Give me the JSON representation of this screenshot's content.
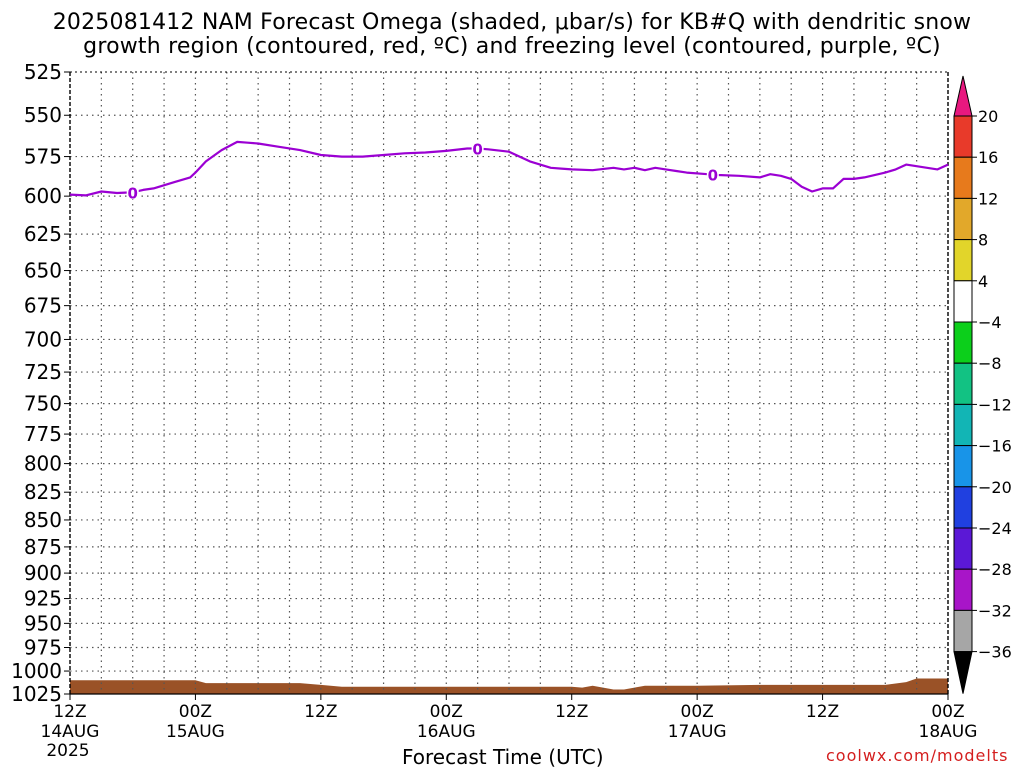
{
  "title": {
    "line1": "2025081412 NAM Forecast Omega (shaded, μbar/s) for KB#Q with dendritic snow",
    "line2": "growth region (contoured, red, ºC) and freezing level (contoured, purple, ºC)"
  },
  "footer": {
    "xlabel": "Forecast Time (UTC)",
    "credit": "coolwx.com/modelts"
  },
  "colors": {
    "freezing_level": "#9b00d3",
    "terrain": "#9a5227",
    "grid": "#555555"
  },
  "chart_data": {
    "type": "line",
    "y_axis": {
      "label": "",
      "scale": "pressure (log, inverted)",
      "ylim": [
        1025,
        525
      ],
      "ticks": [
        525,
        550,
        575,
        600,
        625,
        650,
        675,
        700,
        725,
        750,
        775,
        800,
        825,
        850,
        875,
        900,
        925,
        950,
        975,
        1000,
        1025
      ]
    },
    "x_axis": {
      "label": "Forecast Time (UTC)",
      "xlim": [
        0,
        84
      ],
      "units": "hours from 2025081412",
      "ticks": [
        {
          "h": 0,
          "line1": "12Z",
          "line2": "14AUG",
          "line3": "2025"
        },
        {
          "h": 12,
          "line1": "00Z",
          "line2": "15AUG",
          "line3": ""
        },
        {
          "h": 24,
          "line1": "12Z",
          "line2": "",
          "line3": ""
        },
        {
          "h": 36,
          "line1": "00Z",
          "line2": "16AUG",
          "line3": ""
        },
        {
          "h": 48,
          "line1": "12Z",
          "line2": "",
          "line3": ""
        },
        {
          "h": 60,
          "line1": "00Z",
          "line2": "17AUG",
          "line3": ""
        },
        {
          "h": 72,
          "line1": "12Z",
          "line2": "",
          "line3": ""
        },
        {
          "h": 84,
          "line1": "00Z",
          "line2": "18AUG",
          "line3": ""
        }
      ],
      "minor_grid_hours": [
        0,
        3,
        6,
        9,
        12,
        15,
        18,
        21,
        24,
        27,
        30,
        33,
        36,
        39,
        42,
        45,
        48,
        51,
        54,
        57,
        60,
        63,
        66,
        69,
        72,
        75,
        78,
        81,
        84
      ]
    },
    "grid": true,
    "series": [
      {
        "name": "",
        "type": "contour",
        "contour_label": "0",
        "label_hours": [
          6,
          39,
          61.5
        ],
        "x": [
          0,
          1.5,
          3,
          4.5,
          6,
          7,
          8,
          10,
          11.5,
          12,
          13,
          14.5,
          16,
          17,
          18,
          20,
          22,
          24,
          26,
          28,
          30,
          32,
          34,
          36,
          38,
          39,
          40,
          42,
          44,
          46,
          47,
          48,
          50,
          52,
          53,
          54,
          55,
          56,
          57,
          58,
          59,
          61,
          62,
          64,
          66,
          67,
          68,
          69,
          70,
          71,
          72,
          73,
          74,
          75,
          76,
          78,
          79,
          80,
          81,
          83,
          84
        ],
        "y": [
          599,
          599.5,
          597,
          598,
          597.5,
          596,
          595,
          591,
          588,
          585,
          578,
          571,
          566,
          566.5,
          567,
          569,
          571,
          574,
          575,
          575,
          574,
          573,
          572.5,
          571.5,
          570,
          570,
          570.5,
          572,
          578,
          582,
          582.5,
          583,
          583.5,
          582,
          583,
          582,
          583.5,
          582,
          583,
          584,
          585,
          586,
          586.5,
          587,
          588,
          586,
          587,
          589,
          594,
          597,
          595,
          595,
          589,
          589,
          588,
          585,
          583,
          580,
          581,
          583,
          580
        ]
      },
      {
        "name": "",
        "type": "terrain",
        "x": [
          0,
          12,
          13,
          22,
          24,
          26,
          36,
          48,
          49,
          50,
          51,
          52,
          53,
          54,
          55,
          60,
          66,
          70,
          78,
          80,
          81,
          84
        ],
        "y": [
          1010,
          1010,
          1013,
          1013,
          1015,
          1017,
          1017,
          1017,
          1018,
          1016,
          1018,
          1020,
          1020,
          1018,
          1016,
          1016,
          1015,
          1015,
          1015,
          1012,
          1008,
          1008
        ]
      }
    ],
    "colorbar": {
      "labels": [
        "20",
        "16",
        "12",
        "8",
        "4",
        "−4",
        "−8",
        "−12",
        "−16",
        "−20",
        "−24",
        "−28",
        "−32",
        "−36"
      ],
      "colors": [
        "#e8187f",
        "#e83a2a",
        "#e77a1c",
        "#e2a82a",
        "#e2d52a",
        "#ffffff",
        "#0ccf1b",
        "#12c283",
        "#12b5b5",
        "#1894e8",
        "#2040e0",
        "#5b18d6",
        "#a815c8",
        "#a6a6a6",
        "#000000"
      ]
    }
  }
}
